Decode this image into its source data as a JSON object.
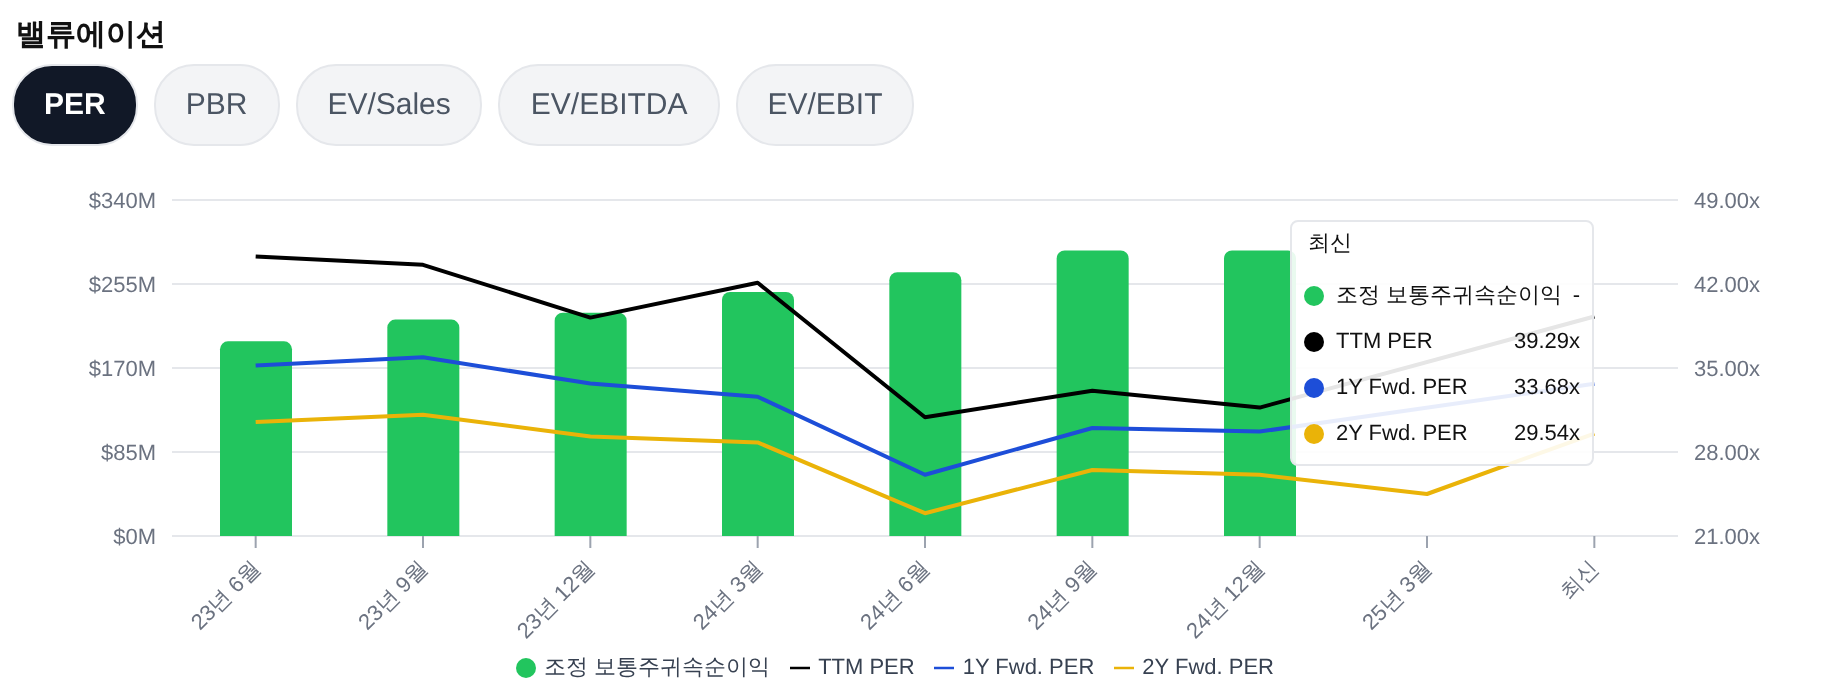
{
  "chart_data": {
    "type": "bar",
    "title": "밸류에이션",
    "annotations": [
      "PER",
      "PBR",
      "EV/Sales",
      "EV/EBITDA",
      "EV/EBIT",
      "최신",
      "조정 보통주귀속순이익",
      "-",
      "TTM PER",
      "39.29x",
      "1Y Fwd. PER",
      "33.68x",
      "2Y Fwd. PER",
      "29.54x"
    ],
    "categories": [
      "23년 6월",
      "23년 9월",
      "23년 12월",
      "24년 3월",
      "24년 6월",
      "24년 9월",
      "24년 12월",
      "25년 3월",
      "최신"
    ],
    "series": [
      {
        "name": "조정 보통주귀속순이익",
        "color": "#22c55e",
        "values": [
          197,
          219,
          226,
          247,
          267,
          289,
          289,
          null,
          null
        ]
      },
      {
        "name": "TTM PER",
        "type": "line",
        "axis": "y2",
        "color": "#000000",
        "values": [
          44.3,
          43.6,
          39.2,
          42.1,
          30.9,
          33.1,
          31.7,
          null,
          39.29
        ]
      },
      {
        "name": "1Y Fwd. PER",
        "type": "line",
        "axis": "y2",
        "color": "#1d4ed8",
        "values": [
          35.2,
          35.9,
          33.7,
          32.6,
          26.1,
          30.0,
          29.7,
          null,
          33.68
        ]
      },
      {
        "name": "2Y Fwd. PER",
        "type": "line",
        "axis": "y2",
        "color": "#eab308",
        "values": [
          30.5,
          31.1,
          29.3,
          28.8,
          22.9,
          26.5,
          26.1,
          24.5,
          29.54
        ]
      }
    ],
    "ylim": [
      0,
      340
    ],
    "yticks": [
      {
        "value": 0,
        "label": "$0M"
      },
      {
        "value": 85,
        "label": "$85M"
      },
      {
        "value": 170,
        "label": "$170M"
      },
      {
        "value": 255,
        "label": "$255M"
      },
      {
        "value": 340,
        "label": "$340M"
      }
    ],
    "y2lim": [
      21,
      49
    ],
    "y2ticks": [
      {
        "value": 21,
        "label": "21.00x"
      },
      {
        "value": 28,
        "label": "28.00x"
      },
      {
        "value": 35,
        "label": "35.00x"
      },
      {
        "value": 42,
        "label": "42.00x"
      },
      {
        "value": 49,
        "label": "49.00x"
      }
    ],
    "grid": "y",
    "legend": "bottom",
    "marker": "none",
    "line_style": "solid"
  }
}
